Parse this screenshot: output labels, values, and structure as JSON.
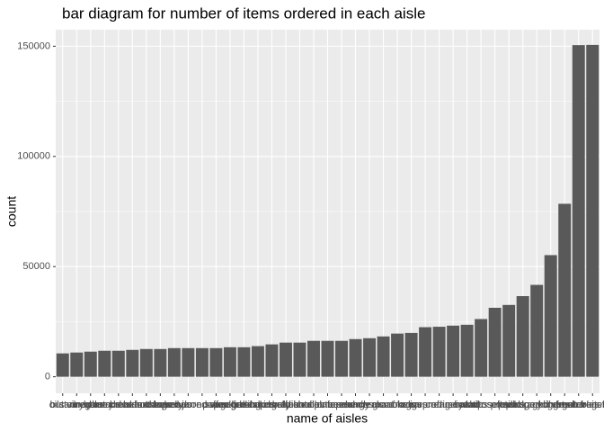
{
  "chart_data": {
    "type": "bar",
    "title": "bar diagram for number of items ordered in each aisle",
    "x_label": "name of aisles",
    "y_label": "count",
    "categories": [
      "butter",
      "oils vinegars",
      "dry pasta",
      "canned meals beans",
      "bakery desserts",
      "other creams cheeses",
      "breakfast bakery",
      "tea",
      "spreads",
      "hot dogs bacon sausage",
      "canned jarred vegetables",
      "coffee",
      "paper goods",
      "cookies cakes",
      "fresh herbs",
      "baking ingredients",
      "soup broth bouillon",
      "candy chocolate",
      "juice nectars",
      "fresh dips tapenades",
      "cereal",
      "frozen meals",
      "lunch meat",
      "energy granola bars",
      "crackers",
      "eggs",
      "frozen produce",
      "ice cream ice",
      "refrigerated",
      "bread",
      "soy lactosefree",
      "chips pretzels",
      "milk",
      "water seltzer sparkling water",
      "packaged cheese",
      "yogurt",
      "packaged vegetables fruits",
      "fresh fruits",
      "fresh vegetables"
    ],
    "values": [
      10600,
      11000,
      11400,
      11800,
      11800,
      12200,
      12600,
      12600,
      13000,
      13000,
      13000,
      13000,
      13400,
      13400,
      13900,
      14700,
      15500,
      15500,
      16300,
      16300,
      16300,
      17100,
      17500,
      18300,
      19600,
      19900,
      22500,
      22700,
      23200,
      23600,
      26200,
      31300,
      32600,
      36600,
      41700,
      55200,
      78500,
      150500,
      150600
    ],
    "color": "#595959",
    "ylim": [
      -7500,
      157500
    ],
    "yticks": [
      0,
      50000,
      100000,
      150000
    ],
    "grid": true
  }
}
